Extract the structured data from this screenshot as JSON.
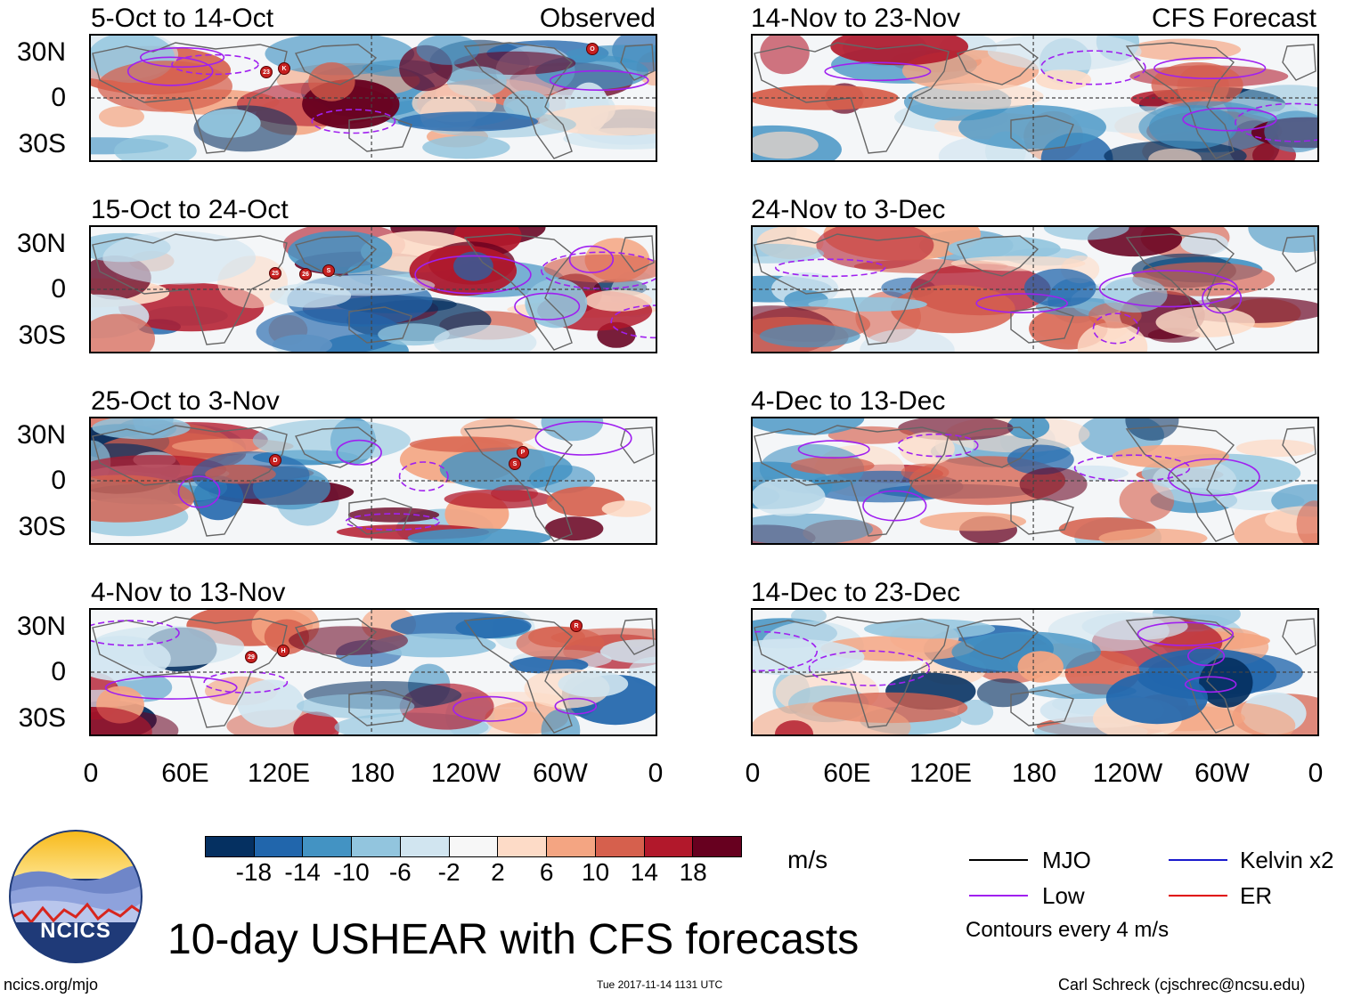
{
  "observed_label": "Observed",
  "forecast_label": "CFS Forecast",
  "lat_labels": [
    "30N",
    "0",
    "30S"
  ],
  "lon_labels": [
    "0",
    "60E",
    "120E",
    "180",
    "120W",
    "60W",
    "0"
  ],
  "panels_left": [
    {
      "title": "5-Oct to 14-Oct",
      "storms": [
        "23",
        "K",
        "O"
      ]
    },
    {
      "title": "15-Oct to 24-Oct",
      "storms": [
        "25",
        "26",
        "S"
      ]
    },
    {
      "title": "25-Oct to 3-Nov",
      "storms": [
        "D",
        "P",
        "S"
      ]
    },
    {
      "title": "4-Nov to 13-Nov",
      "storms": [
        "29",
        "H",
        "R"
      ]
    }
  ],
  "panels_right": [
    {
      "title": "14-Nov to 23-Nov"
    },
    {
      "title": "24-Nov to 3-Dec"
    },
    {
      "title": "4-Dec to 13-Dec"
    },
    {
      "title": "14-Dec to 23-Dec"
    }
  ],
  "colorbar": {
    "colors": [
      "#053061",
      "#2166ac",
      "#4393c3",
      "#92c5de",
      "#d1e5f0",
      "#f7f7f7",
      "#fddbc7",
      "#f4a582",
      "#d6604d",
      "#b2182b",
      "#67001f"
    ],
    "ticks": [
      "-18",
      "-14",
      "-10",
      "-6",
      "-2",
      "2",
      "6",
      "10",
      "14",
      "18"
    ],
    "units": "m/s"
  },
  "legend": {
    "items": [
      {
        "label": "MJO",
        "color": "#000000"
      },
      {
        "label": "Low",
        "color": "#a020f0"
      },
      {
        "label": "Kelvin x2",
        "color": "#1a1acd"
      },
      {
        "label": "ER",
        "color": "#e00000"
      }
    ],
    "note": "Contours every 4 m/s"
  },
  "main_title": "10-day USHEAR with CFS forecasts",
  "logo_text": "NCICS",
  "footer_left": "ncics.org/mjo",
  "footer_center": "Tue 2017-11-14 1131 UTC",
  "footer_right": "Carl Schreck (cjschrec@ncsu.edu)"
}
